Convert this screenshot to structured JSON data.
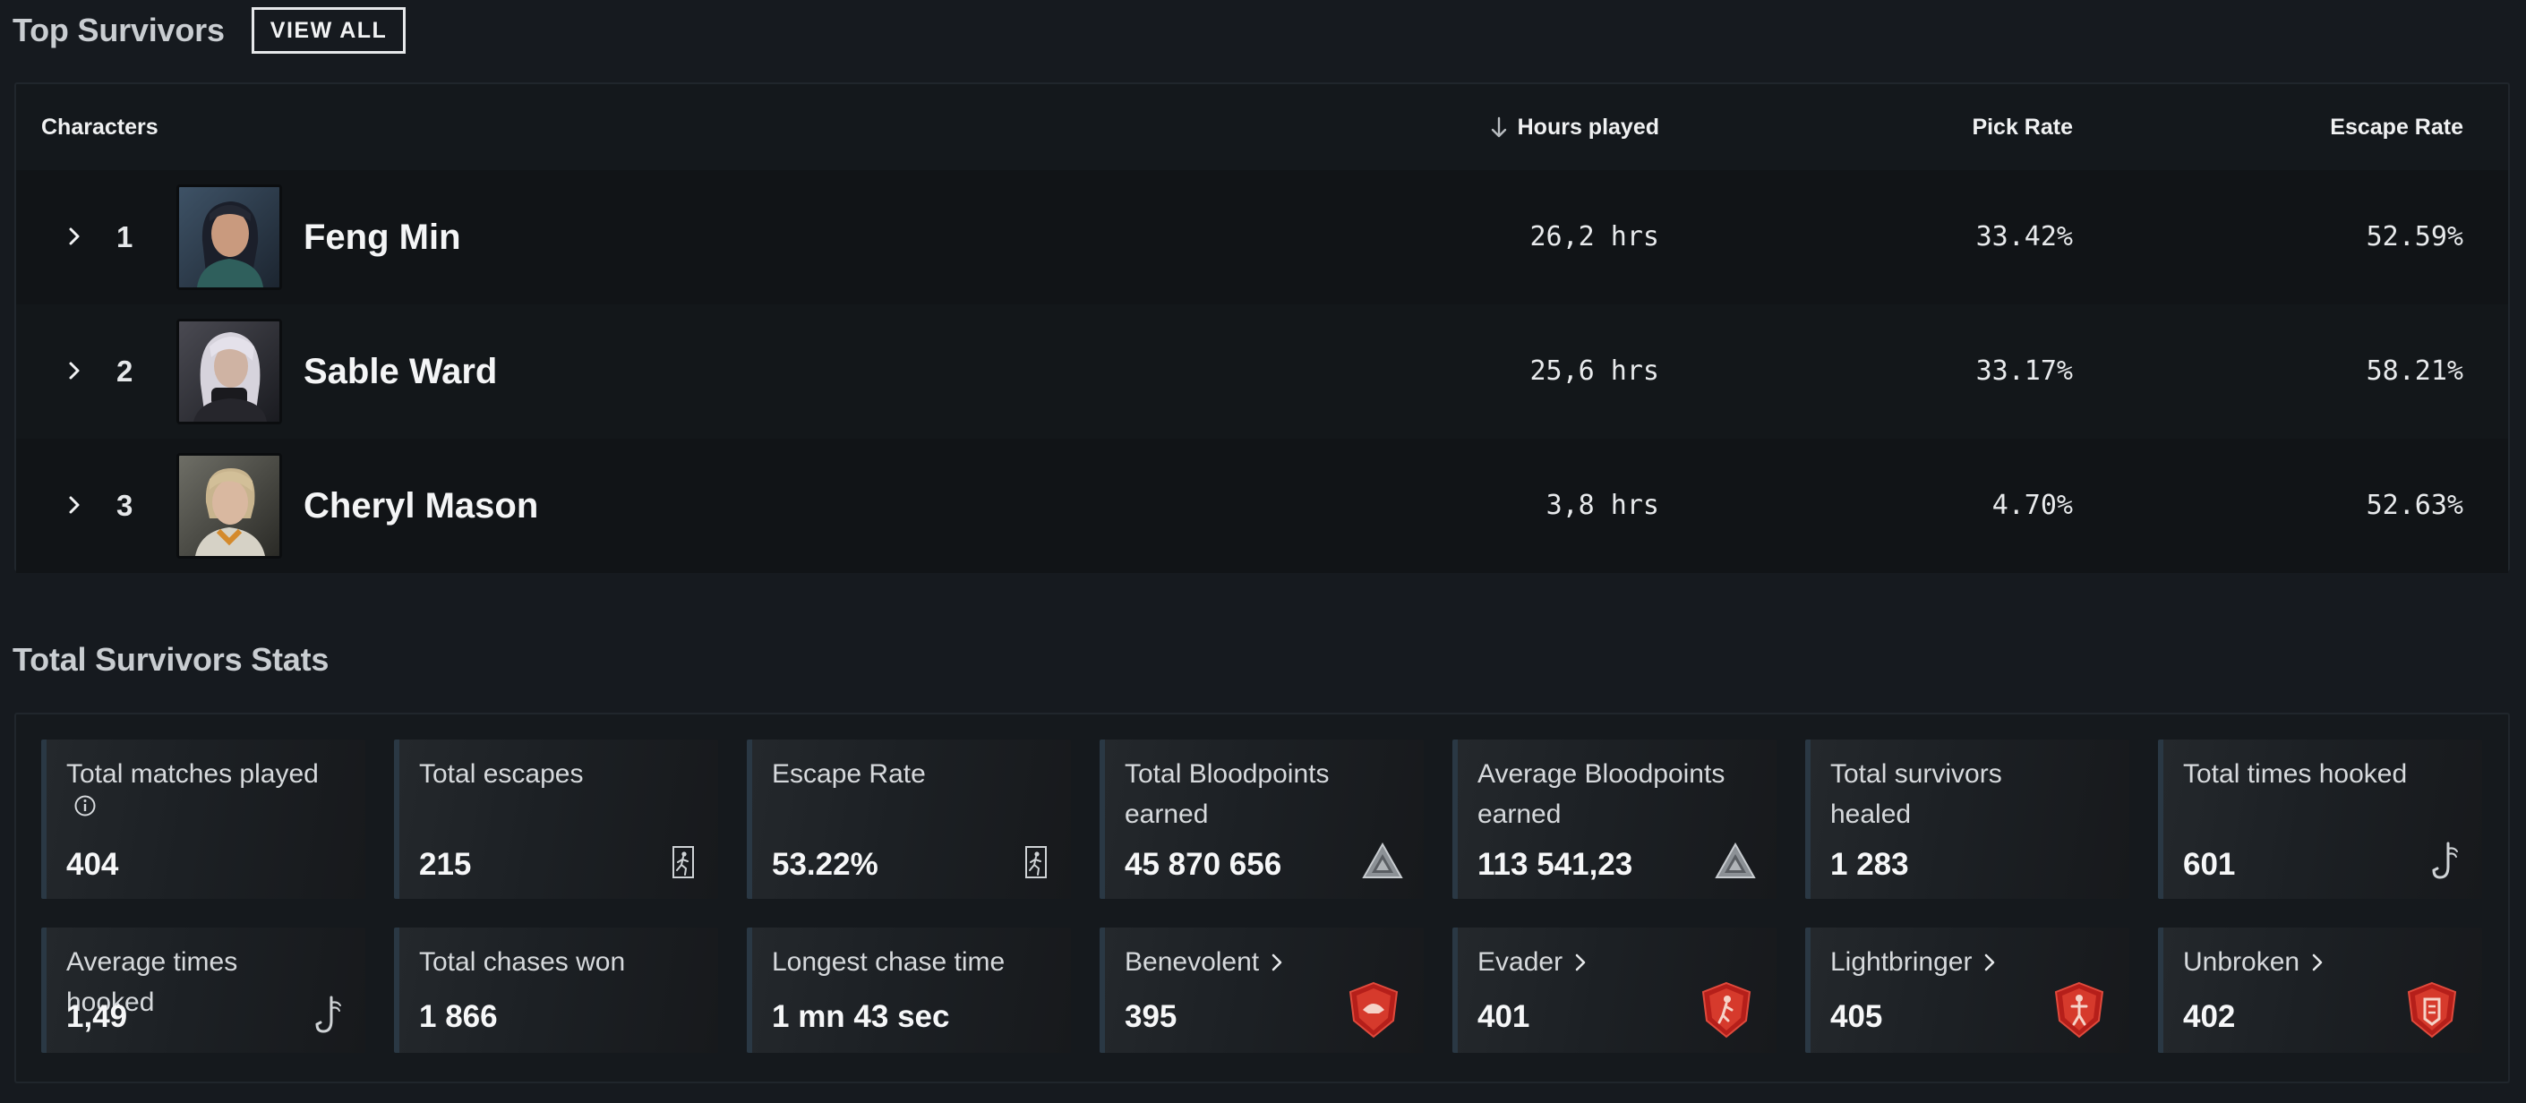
{
  "top_survivors": {
    "title": "Top Survivors",
    "view_all_label": "VIEW ALL",
    "columns": {
      "characters": "Characters",
      "hours_played": "Hours played",
      "pick_rate": "Pick Rate",
      "escape_rate": "Escape Rate"
    },
    "rows": [
      {
        "rank": "1",
        "name": "Feng Min",
        "hours": "26,2 hrs",
        "pick_rate": "33.42%",
        "escape_rate": "52.59%"
      },
      {
        "rank": "2",
        "name": "Sable Ward",
        "hours": "25,6 hrs",
        "pick_rate": "33.17%",
        "escape_rate": "58.21%"
      },
      {
        "rank": "3",
        "name": "Cheryl Mason",
        "hours": "3,8 hrs",
        "pick_rate": "4.70%",
        "escape_rate": "52.63%"
      }
    ]
  },
  "total_stats": {
    "title": "Total Survivors Stats",
    "row1": [
      {
        "label": "Total matches played",
        "value": "404",
        "icon": "info-icon"
      },
      {
        "label": "Total escapes",
        "value": "215",
        "icon": "exit-door-icon"
      },
      {
        "label": "Escape Rate",
        "value": "53.22%",
        "icon": "exit-door-icon"
      },
      {
        "label": "Total Bloodpoints earned",
        "value": "45 870 656",
        "icon": "bloodpoints-icon"
      },
      {
        "label": "Average Bloodpoints earned",
        "value": "113 541,23",
        "icon": "bloodpoints-icon"
      },
      {
        "label": "Total survivors healed",
        "value": "1 283",
        "icon": ""
      },
      {
        "label": "Total times hooked",
        "value": "601",
        "icon": "hook-icon"
      }
    ],
    "row2": [
      {
        "label": "Average times hooked",
        "value": "1,49",
        "icon": "hook-icon"
      },
      {
        "label": "Total chases won",
        "value": "1 866",
        "icon": ""
      },
      {
        "label": "Longest chase time",
        "value": "1 mn 43 sec",
        "icon": ""
      },
      {
        "label": "Benevolent",
        "value": "395",
        "icon": "benevolent-badge-icon"
      },
      {
        "label": "Evader",
        "value": "401",
        "icon": "evader-badge-icon"
      },
      {
        "label": "Lightbringer",
        "value": "405",
        "icon": "lightbringer-badge-icon"
      },
      {
        "label": "Unbroken",
        "value": "402",
        "icon": "unbroken-badge-icon"
      }
    ]
  },
  "colors": {
    "background": "#161a1f",
    "panel": "#14181c",
    "card_accent": "#2a3844",
    "badge_red": "#c8251f"
  }
}
